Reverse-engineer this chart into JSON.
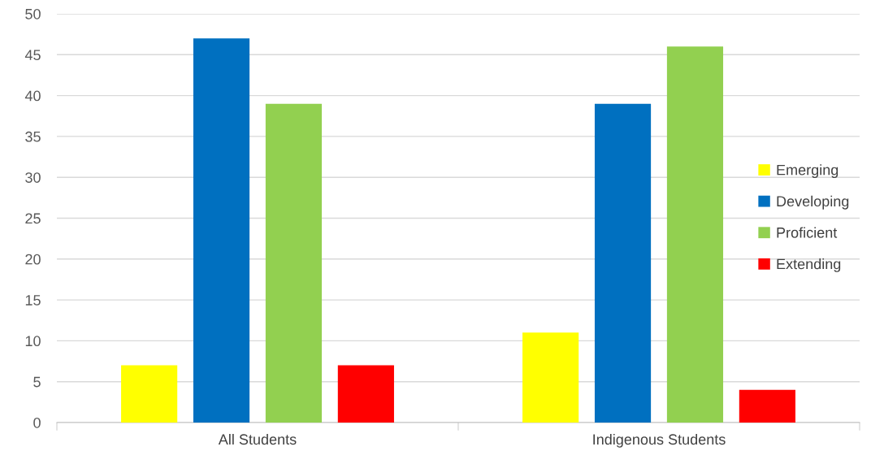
{
  "chart_data": {
    "type": "bar",
    "categories": [
      "All Students",
      "Indigenous Students"
    ],
    "series": [
      {
        "name": "Emerging",
        "color": "#ffff00",
        "values": [
          7,
          11
        ]
      },
      {
        "name": "Developing",
        "color": "#0070c0",
        "values": [
          47,
          39
        ]
      },
      {
        "name": "Proficient",
        "color": "#92d050",
        "values": [
          39,
          46
        ]
      },
      {
        "name": "Extending",
        "color": "#ff0000",
        "values": [
          7,
          4
        ]
      }
    ],
    "ylim": [
      0,
      50
    ],
    "yticks": [
      0,
      5,
      10,
      15,
      20,
      25,
      30,
      35,
      40,
      45,
      50
    ],
    "grid": "y",
    "legend": "center right"
  }
}
